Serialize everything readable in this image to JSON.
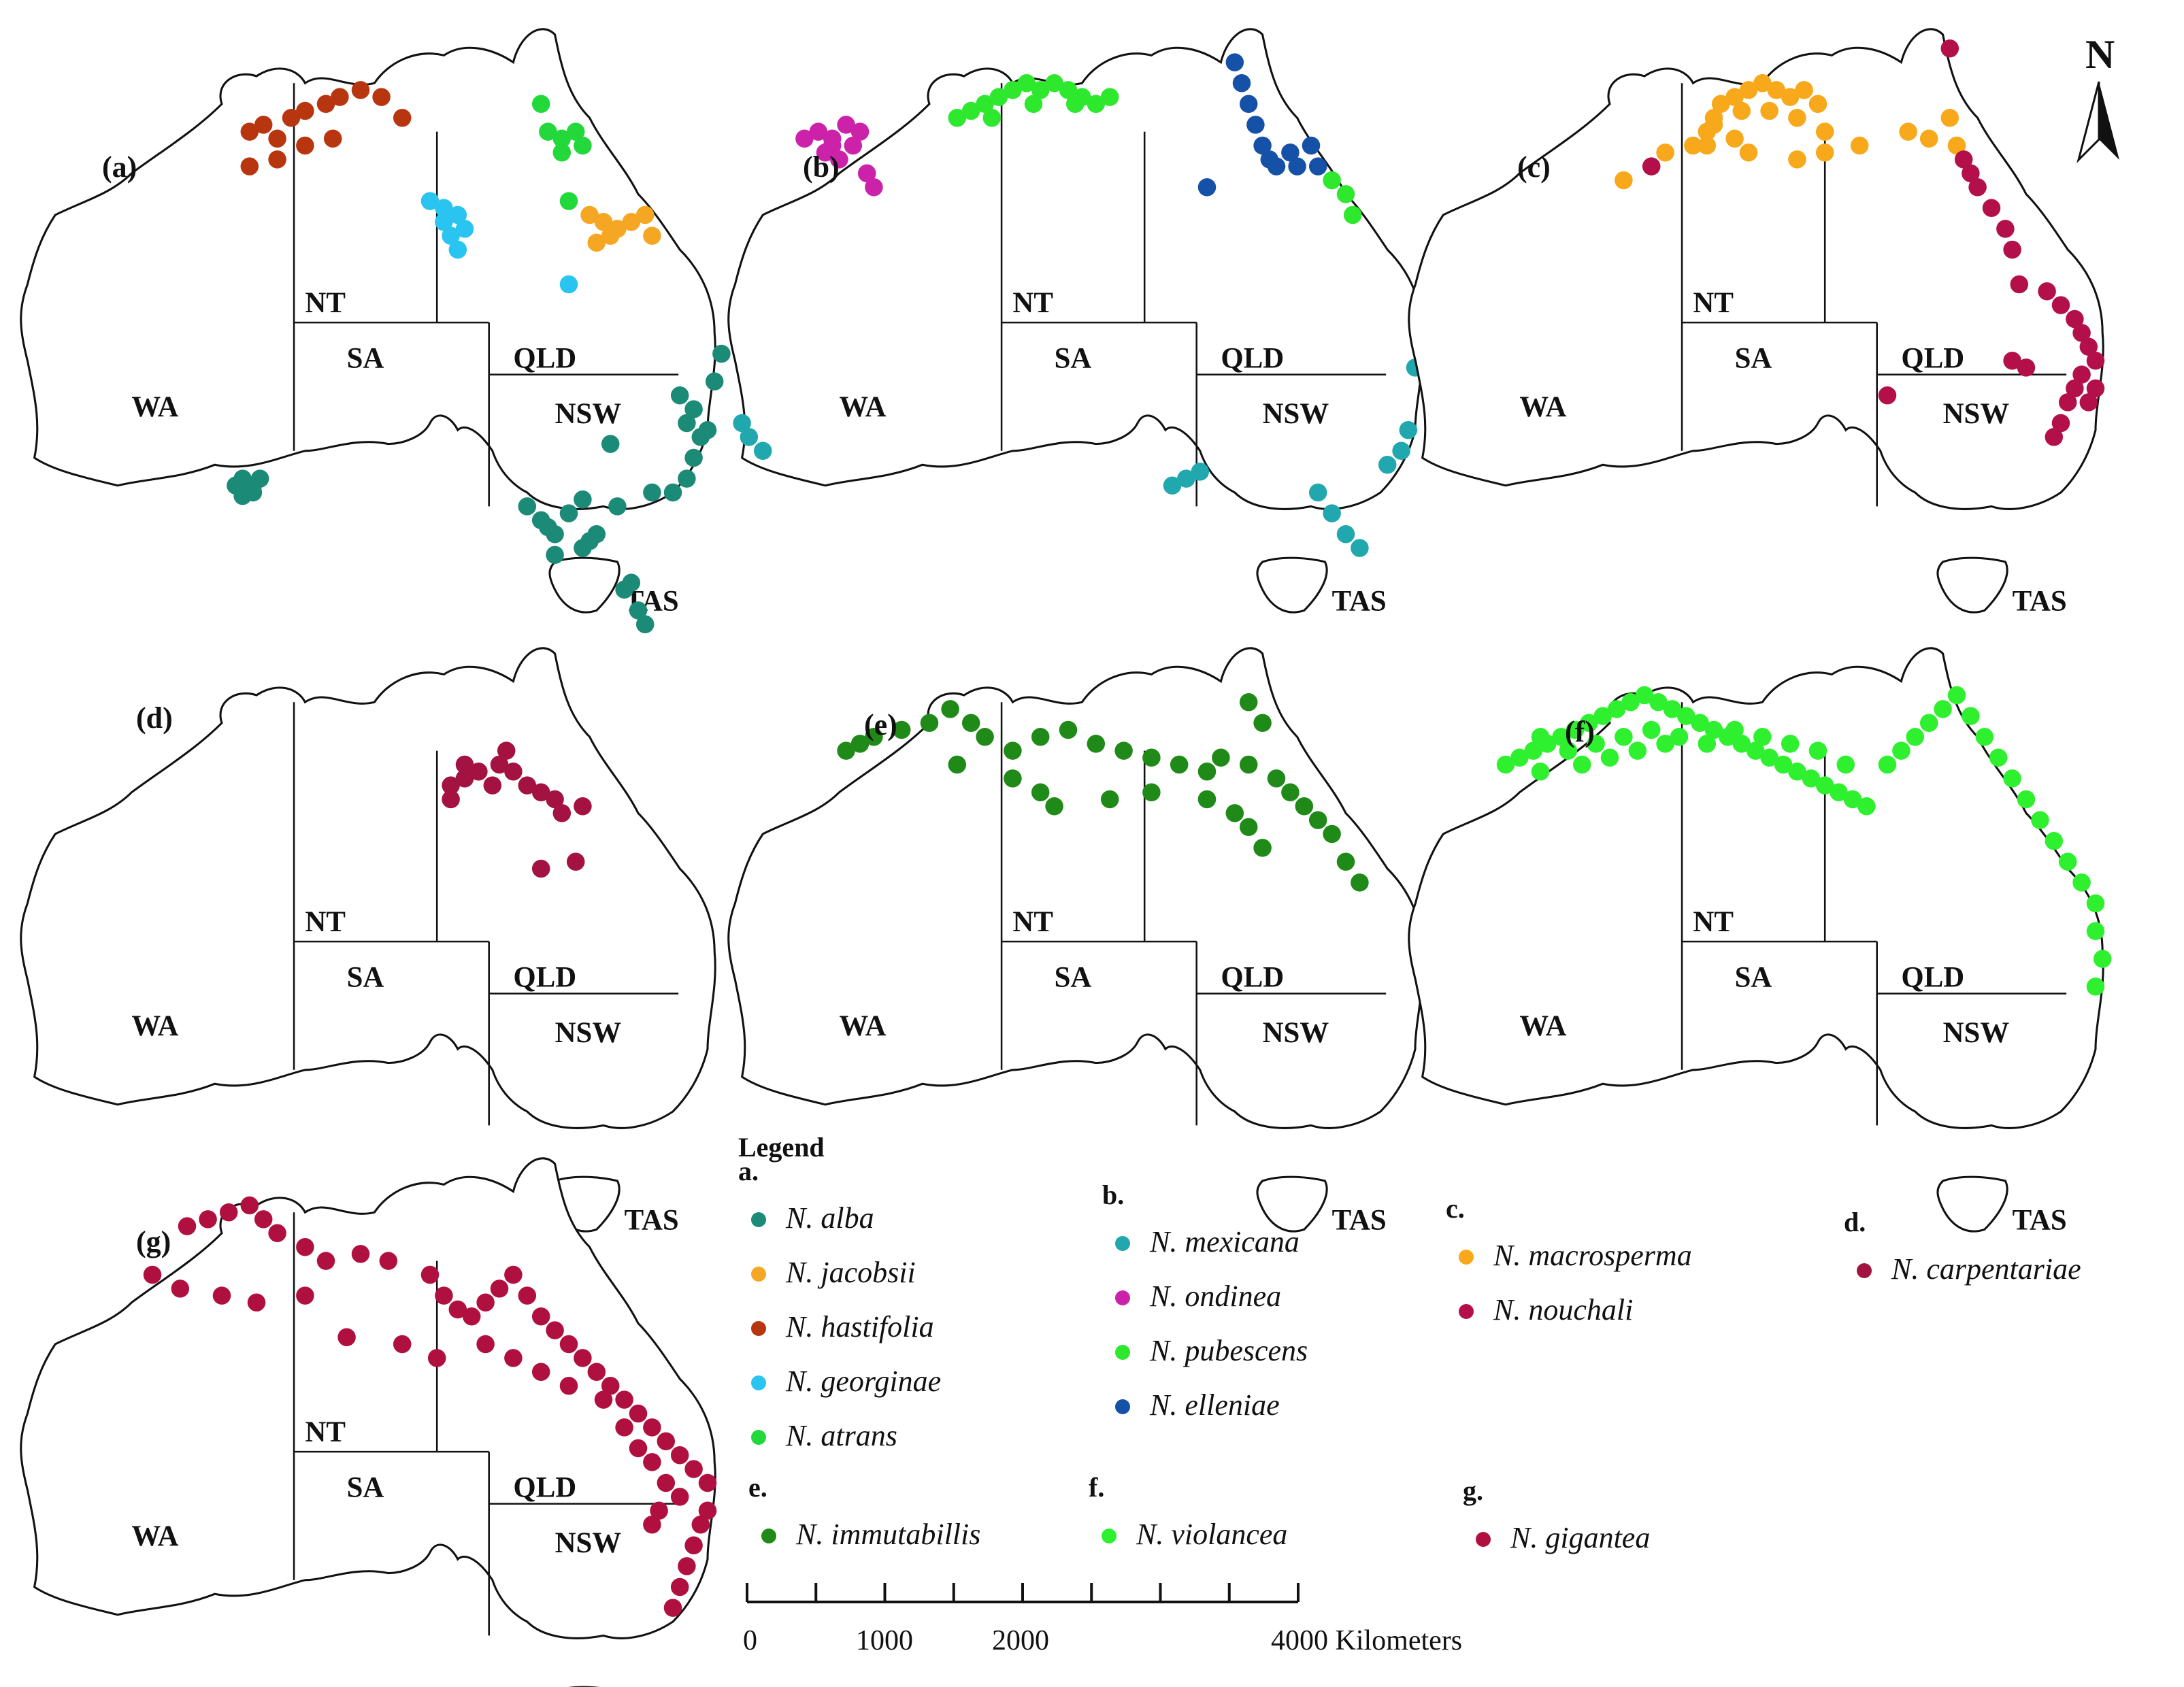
{
  "map_states": [
    "WA",
    "NT",
    "SA",
    "QLD",
    "NSW",
    "TAS"
  ],
  "north_label": "N",
  "colors": {
    "alba": "#1b8a77",
    "jacobsii": "#f5a623",
    "hastifolia": "#b8360f",
    "georginae": "#29c4f0",
    "atrans": "#22d83a",
    "mexicana": "#21a8ae",
    "ondinea": "#cc22aa",
    "pubescens": "#2ee82e",
    "elleniae": "#1651a8",
    "macrosperma": "#f7a81b",
    "nouchali": "#b3104a",
    "carpentariae": "#a31241",
    "immutabillis": "#1f8a18",
    "violancea": "#2ef02e",
    "gigantea": "#b0103f"
  },
  "panels": [
    {
      "label": "(a)",
      "species": [
        {
          "name": "N. alba",
          "color_key": "alba"
        },
        {
          "name": "N. jacobsii",
          "color_key": "jacobsii"
        },
        {
          "name": "N. hastifolia",
          "color_key": "hastifolia"
        },
        {
          "name": "N. georginae",
          "color_key": "georginae"
        },
        {
          "name": "N. atrans",
          "color_key": "atrans"
        }
      ]
    },
    {
      "label": "(b)",
      "species": [
        {
          "name": "N. mexicana",
          "color_key": "mexicana"
        },
        {
          "name": "N. ondinea",
          "color_key": "ondinea"
        },
        {
          "name": "N. pubescens",
          "color_key": "pubescens"
        },
        {
          "name": "N. elleniae",
          "color_key": "elleniae"
        }
      ]
    },
    {
      "label": "(c)",
      "species": [
        {
          "name": "N. macrosperma",
          "color_key": "macrosperma"
        },
        {
          "name": "N. nouchali",
          "color_key": "nouchali"
        }
      ]
    },
    {
      "label": "(d)",
      "species": [
        {
          "name": "N. carpentariae",
          "color_key": "carpentariae"
        }
      ]
    },
    {
      "label": "(e)",
      "species": [
        {
          "name": "N. immutabillis",
          "color_key": "immutabillis"
        }
      ]
    },
    {
      "label": "(f)",
      "species": [
        {
          "name": "N. violancea",
          "color_key": "violancea"
        }
      ]
    },
    {
      "label": "(g)",
      "species": [
        {
          "name": "N. gigantea",
          "color_key": "gigantea"
        }
      ]
    }
  ],
  "legend": {
    "title": "Legend",
    "groups": [
      {
        "key": "a.",
        "items": [
          "N. alba",
          "N. jacobsii",
          "N. hastifolia",
          "N. georginae",
          "N. atrans"
        ]
      },
      {
        "key": "b.",
        "items": [
          "N. mexicana",
          "N. ondinea",
          "N. pubescens",
          "N. elleniae"
        ]
      },
      {
        "key": "c.",
        "items": [
          "N. macrosperma",
          "N. nouchali"
        ]
      },
      {
        "key": "d.",
        "items": [
          "N. carpentariae"
        ]
      },
      {
        "key": "e.",
        "items": [
          "N. immutabillis"
        ]
      },
      {
        "key": "f.",
        "items": [
          "N. violancea"
        ]
      },
      {
        "key": "g.",
        "items": [
          "N. gigantea"
        ]
      }
    ]
  },
  "scale_bar": {
    "labels": [
      "0",
      "1000",
      "2000",
      "4000 Kilometers"
    ],
    "max_km": 4000
  }
}
